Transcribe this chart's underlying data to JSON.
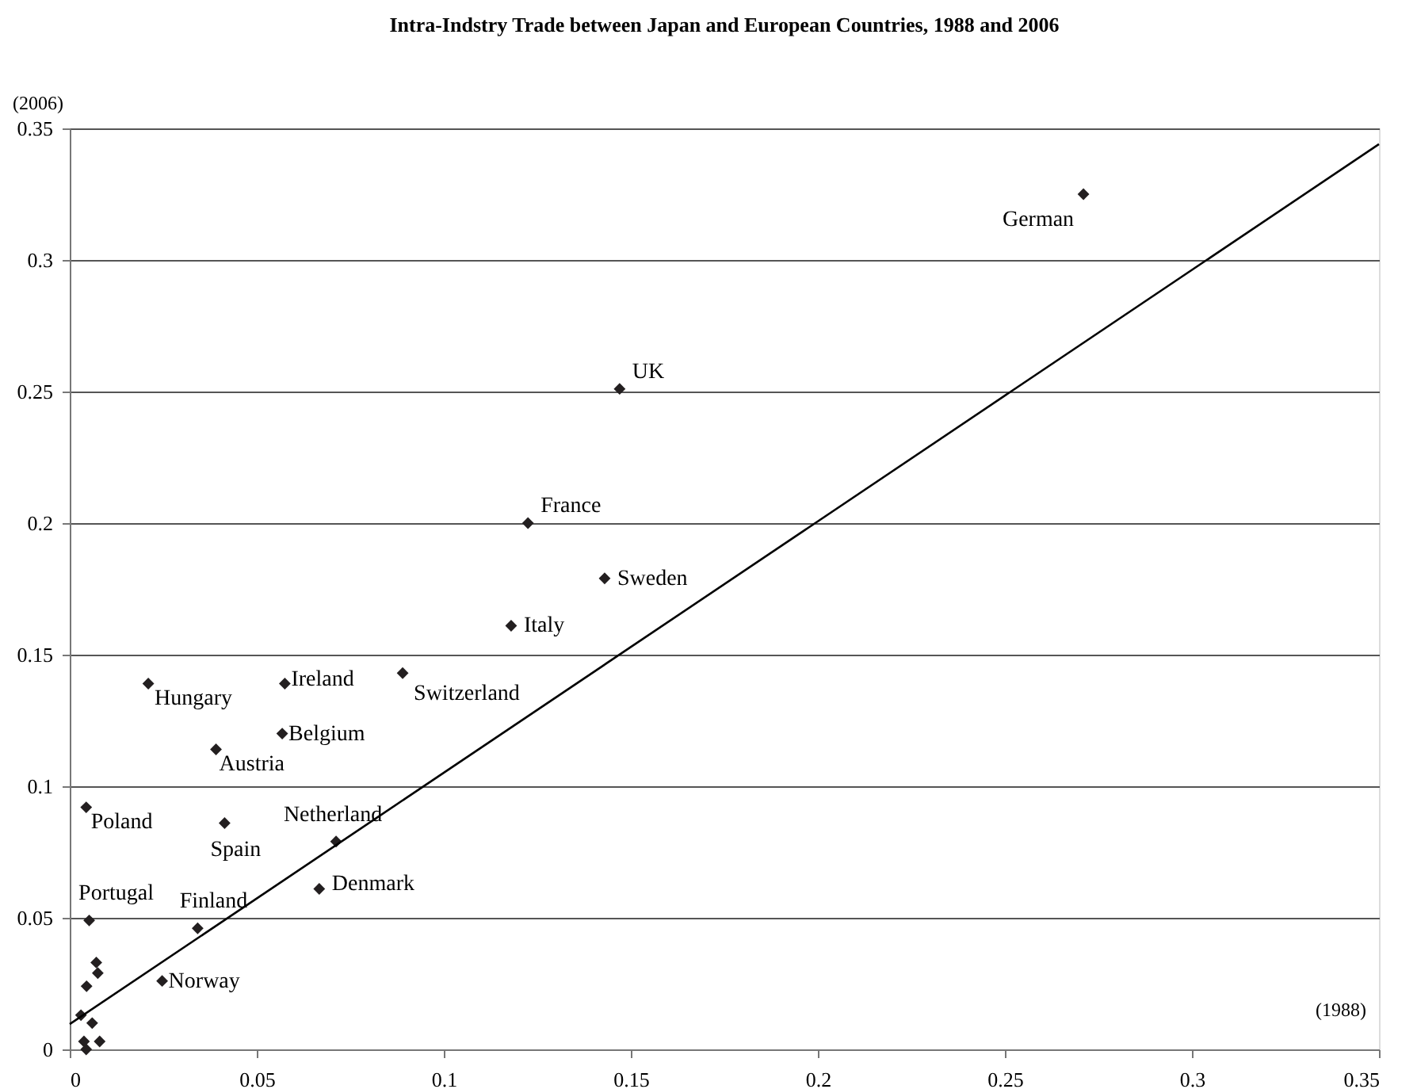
{
  "chart_data": {
    "type": "scatter",
    "title": "Intra-Indstry Trade between Japan and European Countries, 1988 and 2006",
    "xlabel": "(1988)",
    "ylabel": "(2006)",
    "xlim": [
      0,
      0.35
    ],
    "ylim": [
      0,
      0.35
    ],
    "xticks": [
      0,
      0.05,
      0.1,
      0.15,
      0.2,
      0.25,
      0.3,
      0.35
    ],
    "yticks": [
      0,
      0.05,
      0.1,
      0.15,
      0.2,
      0.25,
      0.3,
      0.35
    ],
    "grid": "y",
    "marker": "diamond",
    "series": [
      {
        "color": "#231f20",
        "x": [
          0.271,
          0.147,
          0.1225,
          0.143,
          0.118,
          0.089,
          0.0575,
          0.021,
          0.0568,
          0.0391,
          0.0044,
          0.0414,
          0.0712,
          0.0667,
          0.0052,
          0.0342,
          0.0247,
          0.0071,
          0.0075,
          0.0045,
          0.003,
          0.006,
          0.0038,
          0.008,
          0.0044
        ],
        "values": [
          0.325,
          0.251,
          0.2,
          0.179,
          0.161,
          0.143,
          0.139,
          0.139,
          0.12,
          0.114,
          0.092,
          0.086,
          0.079,
          0.061,
          0.049,
          0.046,
          0.026,
          0.033,
          0.029,
          0.024,
          0.013,
          0.01,
          0.003,
          0.003,
          0.0
        ],
        "value_labels": [
          "German",
          "UK",
          "France",
          "Sweden",
          "Italy",
          "Switzerland",
          "Ireland",
          "Hungary",
          "Belgium",
          "Austria",
          "Poland",
          "Spain",
          "Netherland",
          "Denmark",
          "Portugal",
          "Finland",
          "Norway",
          null,
          null,
          null,
          null,
          null,
          null,
          null,
          null
        ]
      },
      {
        "type": "line",
        "color": "#000000",
        "line_style": "solid",
        "marker": "none",
        "x": [
          0,
          0.35
        ],
        "values": [
          0.0096,
          0.344
        ]
      }
    ]
  }
}
